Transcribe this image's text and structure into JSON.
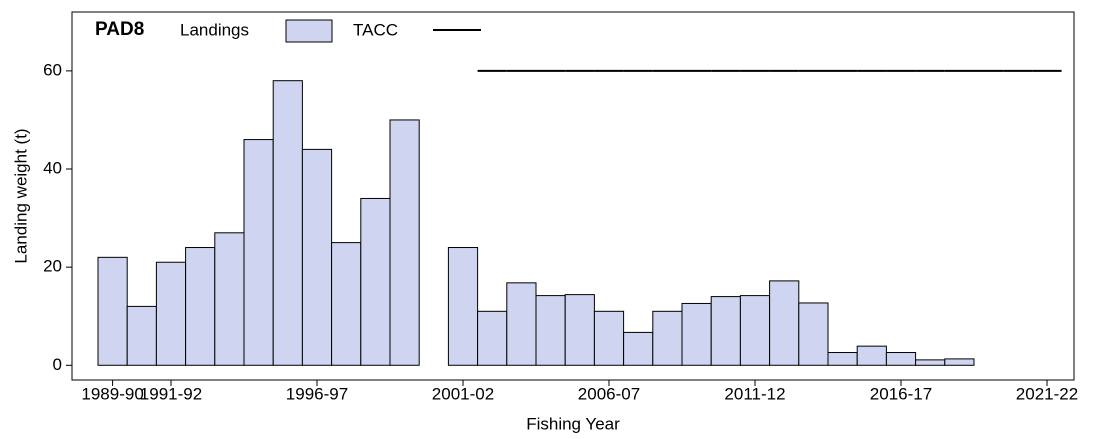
{
  "chart_data": {
    "type": "bar",
    "title": "PAD8",
    "x_label": "Fishing Year",
    "y_label": "Landing weight (t)",
    "categories": [
      "1989-90",
      null,
      "1991-92",
      null,
      null,
      null,
      null,
      "1996-97",
      null,
      null,
      null,
      null,
      "2001-02",
      null,
      null,
      null,
      null,
      "2006-07",
      null,
      null,
      null,
      null,
      "2011-12",
      null,
      null,
      null,
      null,
      "2016-17",
      null,
      null,
      null,
      null,
      "2021-22"
    ],
    "series": [
      {
        "name": "Landings",
        "color": "#cfd5f0",
        "values": [
          22,
          12,
          21,
          24,
          27,
          46,
          58,
          44,
          25,
          34,
          50,
          null,
          24,
          11,
          16.8,
          14.2,
          14.4,
          11,
          6.7,
          11,
          12.6,
          14,
          14.2,
          17.2,
          12.7,
          2.6,
          3.9,
          2.6,
          1.1,
          1.3,
          0,
          0,
          0
        ]
      },
      {
        "name": "TACC",
        "color": "#000000",
        "values": [
          null,
          null,
          null,
          null,
          null,
          null,
          null,
          null,
          null,
          null,
          null,
          null,
          null,
          60,
          60,
          60,
          60,
          60,
          60,
          60,
          60,
          60,
          60,
          60,
          60,
          60,
          60,
          60,
          60,
          60,
          60,
          60,
          60
        ]
      }
    ],
    "ylim": [
      -3,
      72
    ],
    "yticks": [
      0,
      20,
      40,
      60
    ]
  }
}
